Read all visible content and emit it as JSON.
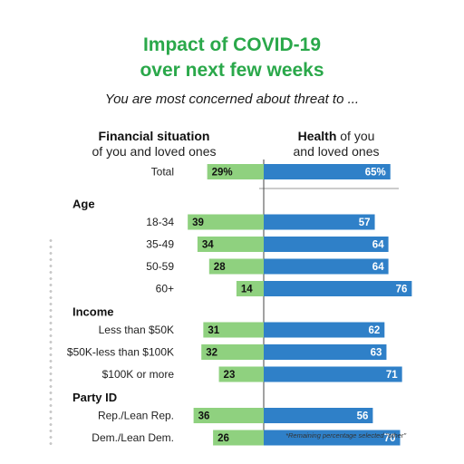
{
  "title_line1": "Impact of COVID-19",
  "title_line2": "over next few weeks",
  "subtitle": "You are most concerned about threat to ...",
  "left_header_bold": "Financial situation",
  "left_header_rest": "of you and loved ones",
  "right_header_bold": "Health",
  "right_header_of": " of you",
  "right_header_rest": "and loved ones",
  "footnote": "*Remaining percentage selected \"other\"",
  "colors": {
    "title": "#2aa84a",
    "financial_bar": "#8fd17f",
    "health_bar": "#2f80c8",
    "axis": "#444444"
  },
  "chart_data": {
    "type": "bar",
    "orientation": "horizontal-diverging",
    "series": [
      {
        "name": "Financial situation of you and loved ones",
        "direction": "left"
      },
      {
        "name": "Health of you and loved ones",
        "direction": "right"
      }
    ],
    "groups": [
      {
        "name": "",
        "rows": [
          {
            "label": "Total",
            "financial": 29,
            "health": 65,
            "financial_label": "29%",
            "health_label": "65%"
          }
        ]
      },
      {
        "name": "Age",
        "rows": [
          {
            "label": "18-34",
            "financial": 39,
            "health": 57,
            "financial_label": "39",
            "health_label": "57"
          },
          {
            "label": "35-49",
            "financial": 34,
            "health": 64,
            "financial_label": "34",
            "health_label": "64"
          },
          {
            "label": "50-59",
            "financial": 28,
            "health": 64,
            "financial_label": "28",
            "health_label": "64"
          },
          {
            "label": "60+",
            "financial": 14,
            "health": 76,
            "financial_label": "14",
            "health_label": "76"
          }
        ]
      },
      {
        "name": "Income",
        "rows": [
          {
            "label": "Less than $50K",
            "financial": 31,
            "health": 62,
            "financial_label": "31",
            "health_label": "62"
          },
          {
            "label": "$50K-less than $100K",
            "financial": 32,
            "health": 63,
            "financial_label": "32",
            "health_label": "63"
          },
          {
            "label": "$100K or more",
            "financial": 23,
            "health": 71,
            "financial_label": "23",
            "health_label": "71"
          }
        ]
      },
      {
        "name": "Party ID",
        "rows": [
          {
            "label": "Rep./Lean Rep.",
            "financial": 36,
            "health": 56,
            "financial_label": "36",
            "health_label": "56"
          },
          {
            "label": "Dem./Lean Dem.",
            "financial": 26,
            "health": 70,
            "financial_label": "26",
            "health_label": "70"
          }
        ]
      }
    ],
    "unit": "percent",
    "xlim": [
      0,
      100
    ],
    "grid": false,
    "legend": "column headers above chart"
  }
}
